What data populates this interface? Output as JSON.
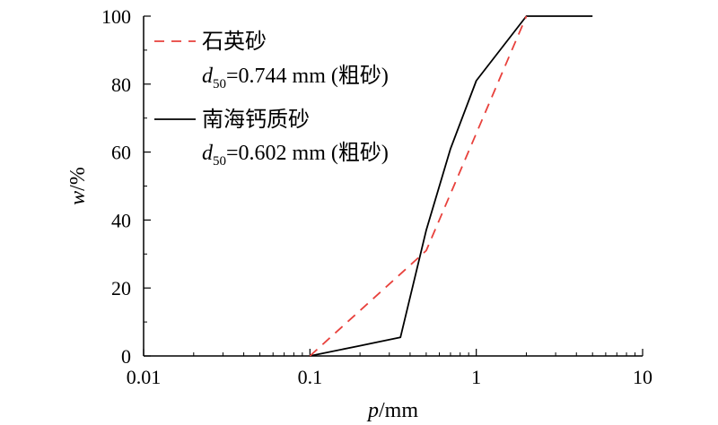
{
  "chart_data": {
    "type": "line",
    "xscale": "log",
    "xlim": [
      0.01,
      10
    ],
    "ylim": [
      0,
      100
    ],
    "xticks": [
      0.01,
      0.1,
      1,
      10
    ],
    "xtick_labels": [
      "0.01",
      "0.1",
      "1",
      "10"
    ],
    "yticks": [
      0,
      20,
      40,
      60,
      80,
      100
    ],
    "ytick_labels": [
      "0",
      "20",
      "40",
      "60",
      "80",
      "100"
    ],
    "xlabel_italic": "p",
    "xlabel_rest": "/mm",
    "ylabel_italic": "w",
    "ylabel_rest": "/%",
    "grid": false,
    "legend_position": "top-left",
    "series": [
      {
        "name": "石英砂",
        "d50_label_main": "d",
        "d50_label_sub": "50",
        "d50_label_rest": "=0.744 mm (粗砂)",
        "color": "#e8413c",
        "style": "dashed",
        "x": [
          0.1,
          0.5,
          2
        ],
        "y": [
          0,
          31,
          100
        ]
      },
      {
        "name": "南海钙质砂",
        "d50_label_main": "d",
        "d50_label_sub": "50",
        "d50_label_rest": "=0.602 mm (粗砂)",
        "color": "#000000",
        "style": "solid",
        "x": [
          0.1,
          0.2,
          0.35,
          0.5,
          0.7,
          1,
          2,
          5
        ],
        "y": [
          0,
          3,
          5.5,
          37,
          61,
          81,
          100,
          100
        ]
      }
    ]
  }
}
